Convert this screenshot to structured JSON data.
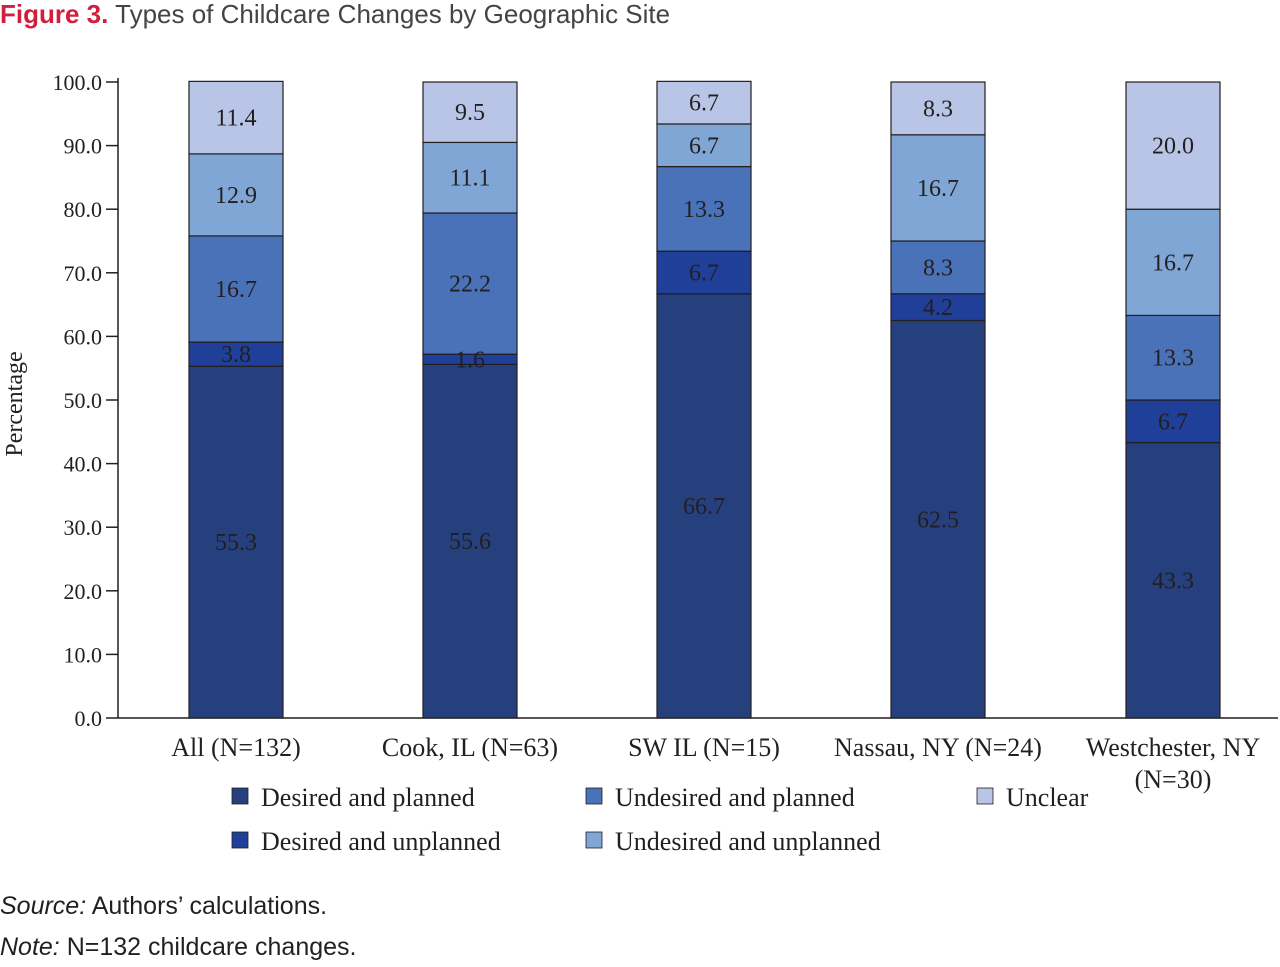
{
  "title": {
    "figure_label": "Figure 3.",
    "text": "Types of Childcare Changes by Geographic Site"
  },
  "chart_data": {
    "type": "bar",
    "stacked": true,
    "ylabel": "Percentage",
    "xlabel": "",
    "ylim": [
      0,
      100
    ],
    "yticks": [
      "0.0",
      "10.0",
      "20.0",
      "30.0",
      "40.0",
      "50.0",
      "60.0",
      "70.0",
      "80.0",
      "90.0",
      "100.0"
    ],
    "categories": [
      {
        "line1": "All (N=132)",
        "line2": ""
      },
      {
        "line1": "Cook, IL (N=63)",
        "line2": ""
      },
      {
        "line1": "SW IL (N=15)",
        "line2": ""
      },
      {
        "line1": "Nassau, NY (N=24)",
        "line2": ""
      },
      {
        "line1": "Westchester, NY",
        "line2": "(N=30)"
      }
    ],
    "series": [
      {
        "name": "Desired and planned",
        "color": "#263f7d",
        "labels": [
          "55.3",
          "55.6",
          "66.7",
          "62.5",
          "43.3"
        ],
        "values": [
          55.3,
          55.6,
          66.7,
          62.5,
          43.3
        ],
        "label_color": "#ffffff"
      },
      {
        "name": "Desired and unplanned",
        "color": "#1f3f99",
        "labels": [
          "3.8",
          "1.6",
          "6.7",
          "4.2",
          "6.7"
        ],
        "values": [
          3.8,
          1.6,
          6.7,
          4.2,
          6.7
        ],
        "label_color": "#ffffff"
      },
      {
        "name": "Undesired and planned",
        "color": "#4a72b9",
        "labels": [
          "16.7",
          "22.2",
          "13.3",
          "8.3",
          "13.3"
        ],
        "values": [
          16.7,
          22.2,
          13.3,
          8.3,
          13.3
        ],
        "label_color": "#231f20"
      },
      {
        "name": "Undesired and unplanned",
        "color": "#7fa6d5",
        "labels": [
          "12.9",
          "11.1",
          "6.7",
          "16.7",
          "16.7"
        ],
        "values": [
          12.9,
          11.1,
          6.7,
          16.7,
          16.7
        ],
        "label_color": "#231f20"
      },
      {
        "name": "Unclear",
        "color": "#b8c5e6",
        "labels": [
          "11.4",
          "9.5",
          "6.7",
          "8.3",
          "20.0"
        ],
        "values": [
          11.4,
          9.5,
          6.7,
          8.3,
          20.0
        ],
        "label_color": "#231f20"
      }
    ],
    "legend_position": "bottom"
  },
  "footnotes": {
    "source_label": "Source:",
    "source_text": " Authors’ calculations.",
    "note_label": "Note:",
    "note_text": " N=132 childcare changes."
  }
}
